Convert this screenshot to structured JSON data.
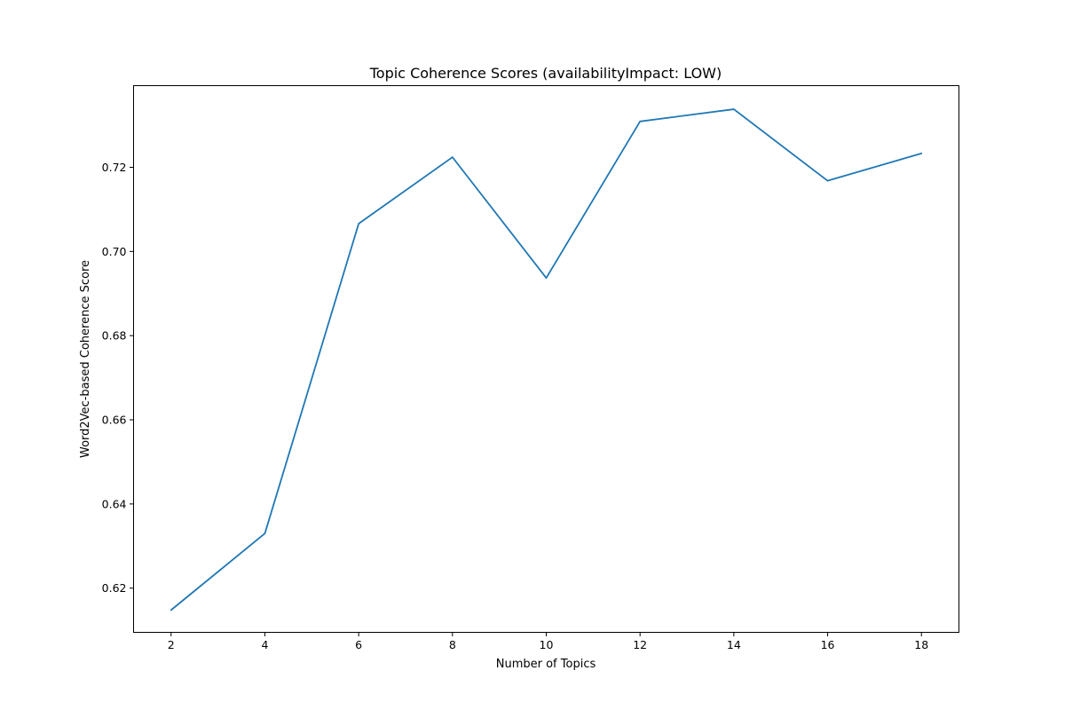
{
  "chart_data": {
    "type": "line",
    "title": "Topic Coherence Scores (availabilityImpact: LOW)",
    "xlabel": "Number of Topics",
    "ylabel": "Word2Vec-based Coherence Score",
    "x": [
      2,
      4,
      6,
      8,
      10,
      12,
      14,
      16,
      18
    ],
    "series": [
      {
        "values": [
          0.6148,
          0.633,
          0.7066,
          0.7224,
          0.6937,
          0.7309,
          0.7338,
          0.7168,
          0.7233
        ],
        "color": "#1f77b4"
      }
    ],
    "xlim": [
      1.2,
      18.8
    ],
    "ylim": [
      0.6095,
      0.7394
    ],
    "xticks": [
      2,
      4,
      6,
      8,
      10,
      12,
      14,
      16,
      18
    ],
    "xtick_labels": [
      "2",
      "4",
      "6",
      "8",
      "10",
      "12",
      "14",
      "16",
      "18"
    ],
    "yticks": [
      0.62,
      0.64,
      0.66,
      0.68,
      0.7,
      0.72
    ],
    "ytick_labels": [
      "0.62",
      "0.64",
      "0.66",
      "0.68",
      "0.70",
      "0.72"
    ],
    "grid": false,
    "legend": "none"
  }
}
